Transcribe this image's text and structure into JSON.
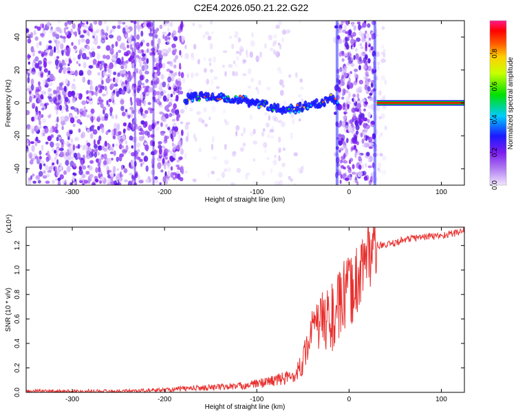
{
  "title": "C2E4.2026.050.21.22.G22",
  "chart_data": [
    {
      "type": "heatmap",
      "xlabel": "Height of straight line (km)",
      "ylabel": "Frequency (Hz)",
      "xlim": [
        -350,
        125
      ],
      "ylim": [
        -50,
        50
      ],
      "x_ticks": [
        -300,
        -200,
        -100,
        0,
        100
      ],
      "y_ticks": [
        -40,
        -20,
        0,
        20,
        40
      ],
      "colorbar": {
        "label": "Normalized spectral amplitude",
        "range": [
          0,
          1
        ],
        "ticks": [
          0.0,
          0.2,
          0.4,
          0.6,
          0.8
        ],
        "colormap": [
          "#f2e6ff",
          "#8a2be2",
          "#0000ff",
          "#00e5ff",
          "#00e000",
          "#ffff00",
          "#ff7f00",
          "#ff0000",
          "#ff1493"
        ]
      },
      "ridge": {
        "x": [
          -175,
          -160,
          -140,
          -120,
          -100,
          -80,
          -60,
          -45,
          -30,
          -20,
          -15,
          30,
          125
        ],
        "y": [
          3,
          4,
          4,
          2,
          0,
          -3,
          -4,
          -1,
          0,
          3,
          0,
          0,
          0
        ]
      }
    },
    {
      "type": "line",
      "xlabel": "Height of straight line (km)",
      "ylabel": "SNR (10 * v/v)",
      "y_multiplier": "(x10⁴)",
      "xlim": [
        -350,
        125
      ],
      "ylim": [
        0,
        1.35
      ],
      "x_ticks": [
        -300,
        -200,
        -100,
        0,
        100
      ],
      "y_ticks": [
        "0.0",
        "0.2",
        "0.4",
        "0.6",
        "0.8",
        "1.0",
        "1.2"
      ],
      "y_tick_values": [
        0,
        0.2,
        0.4,
        0.6,
        0.8,
        1.0,
        1.2
      ],
      "color": "#e8302e",
      "series": [
        {
          "x": [
            -350,
            -300,
            -250,
            -220,
            -200,
            -180,
            -150,
            -120,
            -100,
            -80,
            -60,
            -50,
            -45,
            -40,
            -35,
            -30,
            -25,
            -20,
            -15,
            -10,
            -5,
            0,
            5,
            10,
            15,
            20,
            25,
            30,
            40,
            50,
            60,
            80,
            100,
            120,
            125
          ],
          "y": [
            0.01,
            0.01,
            0.01,
            0.015,
            0.02,
            0.03,
            0.04,
            0.05,
            0.07,
            0.1,
            0.13,
            0.25,
            0.4,
            0.5,
            0.55,
            0.58,
            0.6,
            0.62,
            0.6,
            0.72,
            0.78,
            0.82,
            0.85,
            0.95,
            1.05,
            1.12,
            1.18,
            1.2,
            1.2,
            1.22,
            1.25,
            1.27,
            1.28,
            1.31,
            1.33
          ]
        }
      ]
    }
  ]
}
